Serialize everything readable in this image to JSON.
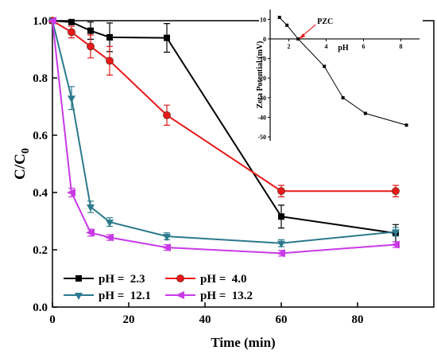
{
  "chart_data": [
    {
      "type": "line",
      "xlabel": "Time (min)",
      "ylabel_main": "C/C",
      "ylabel_sub": "0",
      "xlim": [
        0,
        100
      ],
      "ylim": [
        0.0,
        1.0
      ],
      "xticks": [
        0,
        20,
        40,
        60,
        80
      ],
      "yticks": [
        0.0,
        0.2,
        0.4,
        0.6,
        0.8,
        1.0
      ],
      "x": [
        0,
        5,
        10,
        15,
        30,
        60,
        90
      ],
      "legend_placement": "bottom-left",
      "series": [
        {
          "name": "pH =  2.3",
          "color": "#000000",
          "marker": "square",
          "values": [
            1.0,
            0.995,
            0.965,
            0.942,
            0.94,
            0.316,
            0.258
          ],
          "errors": [
            0,
            0.005,
            0.03,
            0.05,
            0.05,
            0.04,
            0.03
          ]
        },
        {
          "name": "pH =  4.0",
          "color": "#e8191c",
          "marker": "circle",
          "values": [
            1.0,
            0.96,
            0.91,
            0.86,
            0.67,
            0.405,
            0.405
          ],
          "errors": [
            0,
            0.02,
            0.04,
            0.05,
            0.035,
            0.02,
            0.02
          ]
        },
        {
          "name": "pH =  12.1",
          "color": "#2b7a8c",
          "marker": "triangle-down",
          "values": [
            1.0,
            0.73,
            0.35,
            0.297,
            0.247,
            0.223,
            0.263
          ],
          "errors": [
            0,
            0.04,
            0.02,
            0.015,
            0.012,
            0.012,
            0.015
          ]
        },
        {
          "name": "pH =  13.2",
          "color": "#c93ae6",
          "marker": "triangle-left",
          "values": [
            1.0,
            0.4,
            0.26,
            0.243,
            0.208,
            0.188,
            0.218
          ],
          "errors": [
            0,
            0.015,
            0.012,
            0.01,
            0.01,
            0.01,
            0.01
          ]
        }
      ]
    },
    {
      "type": "line",
      "xlabel": "pH",
      "ylabel": "Zeta Potential (mV)",
      "xlim": [
        1,
        9
      ],
      "ylim": [
        -52,
        15
      ],
      "xticks": [
        2,
        4,
        6,
        8
      ],
      "yticks": [
        10,
        0,
        -10,
        -20,
        -30,
        -40,
        -50
      ],
      "x": [
        1.5,
        1.9,
        2.5,
        3.9,
        4.9,
        6.1,
        8.3
      ],
      "values": [
        11,
        7,
        0,
        -14,
        -30,
        -38,
        -44
      ],
      "color": "#000000",
      "annotation": {
        "text": "PZC",
        "x": 2.5,
        "y": 0
      }
    }
  ]
}
